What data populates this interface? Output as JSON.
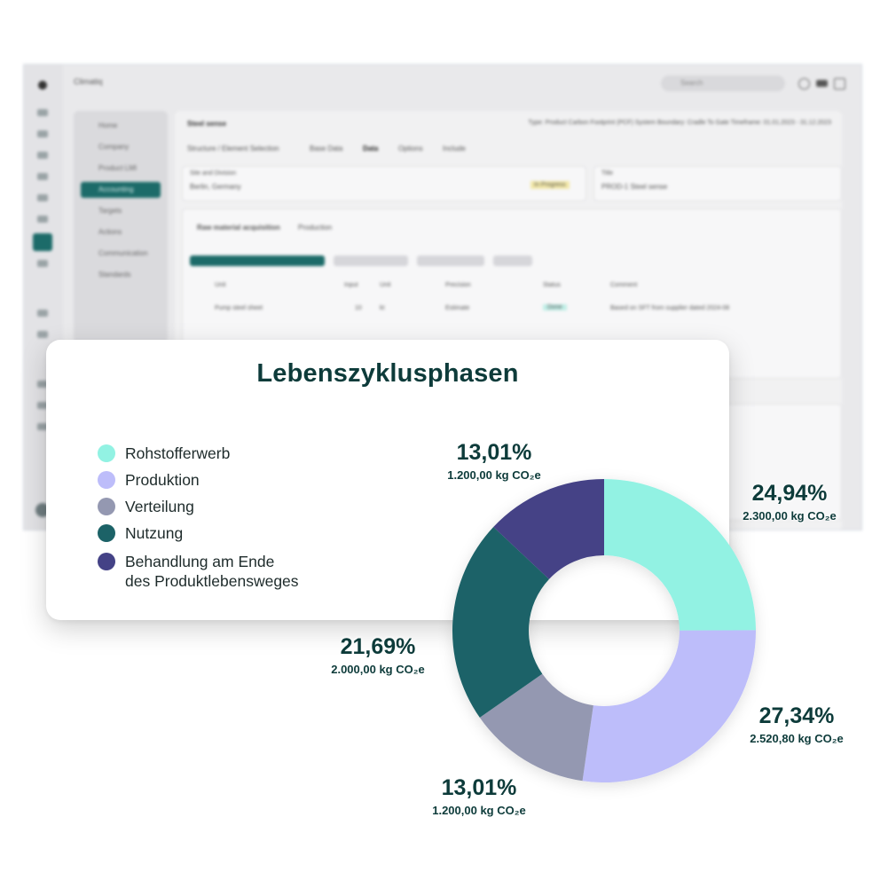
{
  "background_app": {
    "app_name": "Climatiq",
    "search_placeholder": "Search",
    "menu_items": [
      "Home",
      "Company",
      "Product LMI",
      "Accounting",
      "Targets",
      "Actions",
      "Communication",
      "Standards"
    ],
    "back_title": "Steel sense",
    "meta": "Type: Product Carbon Footprint (PCF)   System Boundary: Cradle To Gate   Timeframe: 01.01.2023 - 31.12.2023",
    "tabs": [
      "Structure / Element Selection",
      "Base Data",
      "Data",
      "Options",
      "Include"
    ],
    "field1_label": "Site and Division",
    "field1_value": "Berlin, Germany",
    "field1_badge": "In Progress",
    "field2_label": "Title",
    "field2_value": "PROD-1 Steel sense",
    "phase_select": "Raw material acquisition",
    "phase_select2": "Production",
    "table_headers": [
      "Unit",
      "Input",
      "Unit",
      "Precision",
      "Status",
      "Comment"
    ],
    "row_values": [
      "Pump steel sheet",
      "10",
      "kt",
      "Estimate",
      "Done",
      "Based on SFT from supplier dated 2024-08"
    ]
  },
  "chart_data": {
    "type": "donut",
    "title": "Lebenszyklusphasen",
    "unit": "kg CO₂e",
    "slices": [
      {
        "label": "Rohstofferwerb",
        "percent": "24,94%",
        "amount": "2.300,00 kg CO₂e",
        "value": 2300.0,
        "color": "#92f2e3"
      },
      {
        "label": "Produktion",
        "percent": "27,34%",
        "amount": "2.520,80 kg CO₂e",
        "value": 2520.8,
        "color": "#bdbdfa"
      },
      {
        "label": "Verteilung",
        "percent": "13,01%",
        "amount": "1.200,00 kg CO₂e",
        "value": 1200.0,
        "color": "#9498b1"
      },
      {
        "label": "Nutzung",
        "percent": "21,69%",
        "amount": "2.000,00 kg CO₂e",
        "value": 2000.0,
        "color": "#1c6267"
      },
      {
        "label": "Behandlung am Ende\ndes Produktlebensweges",
        "percent": "13,01%",
        "amount": "1.200,00 kg CO₂e",
        "value": 1200.0,
        "color": "#444286"
      }
    ],
    "legend_position": "left"
  }
}
